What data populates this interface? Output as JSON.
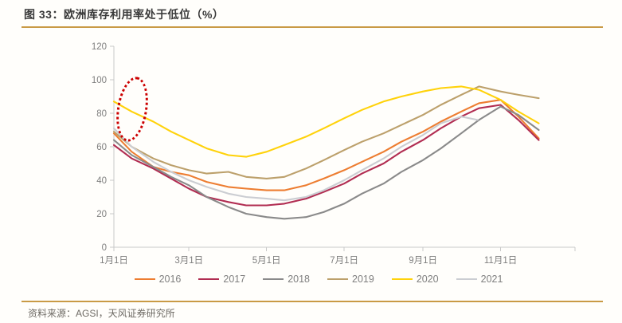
{
  "header": {
    "title": "图 33：欧洲库存利用率处于低位（%）"
  },
  "footer": {
    "source": "资料来源：AGSI，天风证券研究所"
  },
  "style": {
    "accent_rule_color": "#c99a45",
    "annotation_color": "#cc0000",
    "axis_color": "#c9c9c9",
    "tick_label_color": "#7f7f7f",
    "title_color": "#3a3a3a",
    "source_color": "#6e6a64"
  },
  "chart_data": {
    "type": "line",
    "title": "欧洲库存利用率处于低位（%）",
    "xlabel": "",
    "ylabel": "",
    "grid": false,
    "x_axis": {
      "tick_labels": [
        "1月1日",
        "3月1日",
        "5月1日",
        "7月1日",
        "9月1日",
        "11月1日"
      ],
      "tick_days": [
        1,
        60,
        121,
        182,
        244,
        305
      ],
      "domain_days": [
        1,
        365
      ]
    },
    "y_axis": {
      "min": 0,
      "max": 120,
      "ticks": [
        0,
        20,
        40,
        60,
        80,
        100,
        120
      ]
    },
    "legend": {
      "position": "bottom",
      "entries": [
        "2016",
        "2017",
        "2018",
        "2019",
        "2020",
        "2021"
      ]
    },
    "annotation": {
      "shape": "dotted-ellipse",
      "color": "#cc0000",
      "x_day": 10,
      "y_value_range": [
        66,
        97
      ]
    },
    "series": [
      {
        "name": "2016",
        "color": "#ed7d31",
        "days": [
          1,
          15,
          32,
          46,
          60,
          74,
          91,
          105,
          121,
          135,
          152,
          166,
          182,
          196,
          213,
          227,
          244,
          258,
          274,
          288,
          305,
          319,
          335
        ],
        "values": [
          68,
          57,
          48,
          45,
          43,
          39,
          36,
          35,
          34,
          34,
          37,
          41,
          46,
          51,
          57,
          63,
          69,
          75,
          81,
          86,
          88,
          78,
          65
        ]
      },
      {
        "name": "2017",
        "color": "#b12d52",
        "days": [
          1,
          15,
          32,
          46,
          60,
          74,
          91,
          105,
          121,
          135,
          152,
          166,
          182,
          196,
          213,
          227,
          244,
          258,
          274,
          288,
          305,
          319,
          335
        ],
        "values": [
          61,
          53,
          47,
          41,
          35,
          30,
          27,
          25,
          25,
          26,
          29,
          33,
          38,
          44,
          50,
          57,
          64,
          71,
          78,
          83,
          85,
          76,
          64
        ]
      },
      {
        "name": "2018",
        "color": "#8a8a8a",
        "days": [
          1,
          15,
          32,
          46,
          60,
          74,
          91,
          105,
          121,
          135,
          152,
          166,
          182,
          196,
          213,
          227,
          244,
          258,
          274,
          288,
          305,
          319,
          335
        ],
        "values": [
          64,
          55,
          48,
          42,
          37,
          30,
          24,
          20,
          18,
          17,
          18,
          21,
          26,
          32,
          38,
          45,
          52,
          59,
          68,
          76,
          84,
          79,
          70
        ]
      },
      {
        "name": "2019",
        "color": "#bca06b",
        "days": [
          1,
          15,
          32,
          46,
          60,
          74,
          91,
          105,
          121,
          135,
          152,
          166,
          182,
          196,
          213,
          227,
          244,
          258,
          274,
          288,
          305,
          319,
          335
        ],
        "values": [
          69,
          60,
          53,
          49,
          46,
          44,
          45,
          42,
          41,
          42,
          47,
          52,
          58,
          63,
          68,
          73,
          79,
          85,
          91,
          96,
          93,
          91,
          89
        ]
      },
      {
        "name": "2020",
        "color": "#ffd20a",
        "days": [
          1,
          15,
          32,
          46,
          60,
          74,
          91,
          105,
          121,
          135,
          152,
          166,
          182,
          196,
          213,
          227,
          244,
          258,
          274,
          288,
          305,
          319,
          335
        ],
        "values": [
          87,
          81,
          75,
          69,
          64,
          59,
          55,
          54,
          57,
          61,
          66,
          71,
          77,
          82,
          87,
          90,
          93,
          95,
          96,
          94,
          88,
          81,
          74
        ]
      },
      {
        "name": "2021",
        "color": "#cbcdd2",
        "days": [
          1,
          15,
          32,
          46,
          60,
          74,
          91,
          105,
          121,
          135,
          152,
          166,
          182,
          196,
          213,
          227,
          244,
          258,
          274,
          287
        ],
        "values": [
          71,
          60,
          51,
          45,
          40,
          36,
          32,
          30,
          29,
          28,
          30,
          34,
          40,
          46,
          53,
          60,
          67,
          74,
          78,
          76
        ]
      }
    ]
  }
}
